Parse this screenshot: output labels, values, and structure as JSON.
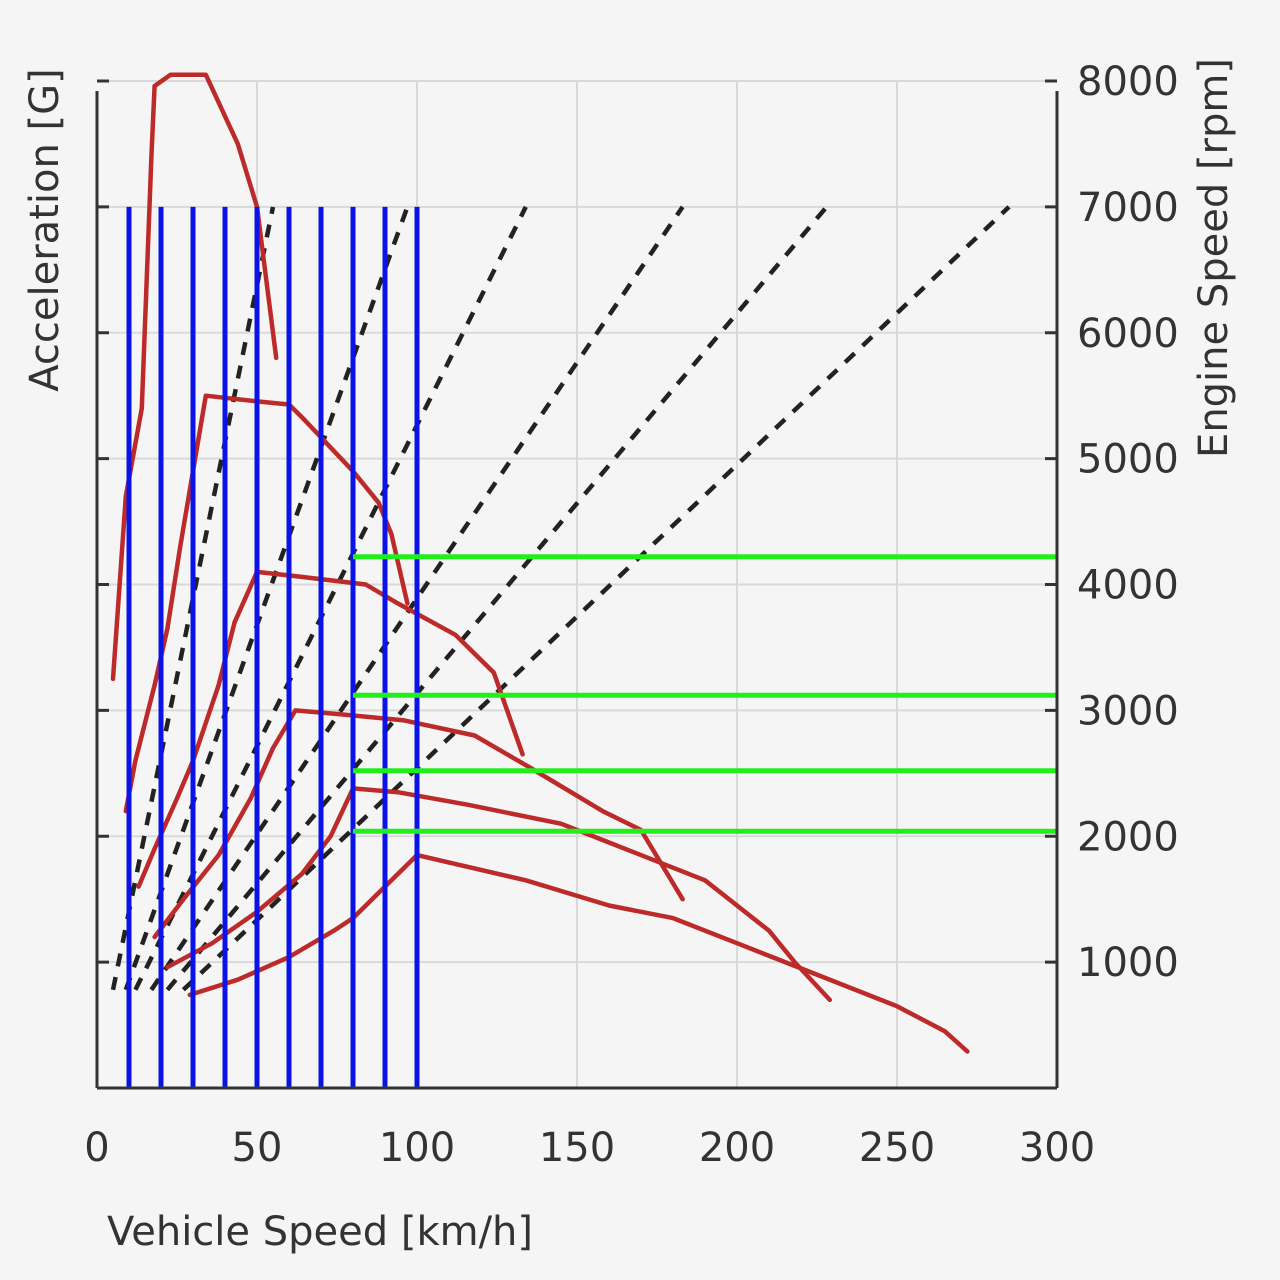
{
  "chart_data": {
    "type": "line",
    "title": "",
    "xlabel": "Vehicle Speed [km/h]",
    "ylabel_left": "Acceleration [G]",
    "ylabel_right": "Engine Speed [rpm]",
    "xlim": [
      0,
      300
    ],
    "ylim_rpm": [
      0,
      8000
    ],
    "x_ticks": [
      "0",
      "50",
      "100",
      "150",
      "200",
      "250",
      "300"
    ],
    "y_ticks_right": [
      "1000",
      "2000",
      "3000",
      "4000",
      "5000",
      "6000",
      "7000",
      "8000"
    ],
    "grid": true,
    "colors": {
      "acceleration": "#bd2a2a",
      "rpm": "#222222",
      "vertical_markers": "#0a14e6",
      "horizontal_markers": "#22ee1c",
      "grid": "#d9d9d9",
      "axis": "#333333"
    },
    "acceleration_curves": [
      {
        "points": [
          [
            5,
            3250
          ],
          [
            9,
            4700
          ],
          [
            14,
            5400
          ],
          [
            17,
            7400
          ],
          [
            18,
            7960
          ],
          [
            23,
            8050
          ],
          [
            34,
            8050
          ],
          [
            44,
            7500
          ],
          [
            50,
            7000
          ],
          [
            53,
            6400
          ],
          [
            56,
            5800
          ]
        ]
      },
      {
        "points": [
          [
            9,
            2200
          ],
          [
            12,
            2600
          ],
          [
            18,
            3200
          ],
          [
            22,
            3650
          ],
          [
            26,
            4300
          ],
          [
            34,
            5500
          ],
          [
            52,
            5450
          ],
          [
            60,
            5430
          ],
          [
            64,
            5330
          ],
          [
            80,
            4900
          ],
          [
            88,
            4650
          ],
          [
            92,
            4400
          ],
          [
            97,
            3850
          ]
        ]
      },
      {
        "points": [
          [
            13,
            1600
          ],
          [
            18,
            1900
          ],
          [
            25,
            2300
          ],
          [
            30,
            2600
          ],
          [
            38,
            3200
          ],
          [
            43,
            3700
          ],
          [
            50,
            4100
          ],
          [
            64,
            4060
          ],
          [
            84,
            4000
          ],
          [
            94,
            3850
          ],
          [
            112,
            3600
          ],
          [
            124,
            3300
          ],
          [
            133,
            2650
          ]
        ]
      },
      {
        "points": [
          [
            18,
            1200
          ],
          [
            27,
            1500
          ],
          [
            38,
            1850
          ],
          [
            48,
            2300
          ],
          [
            55,
            2700
          ],
          [
            62,
            3000
          ],
          [
            76,
            2970
          ],
          [
            96,
            2920
          ],
          [
            118,
            2800
          ],
          [
            135,
            2550
          ],
          [
            158,
            2200
          ],
          [
            170,
            2050
          ],
          [
            183,
            1500
          ]
        ]
      },
      {
        "points": [
          [
            22,
            960
          ],
          [
            36,
            1150
          ],
          [
            50,
            1400
          ],
          [
            64,
            1700
          ],
          [
            73,
            2000
          ],
          [
            80,
            2380
          ],
          [
            94,
            2350
          ],
          [
            116,
            2250
          ],
          [
            145,
            2100
          ],
          [
            160,
            1950
          ],
          [
            190,
            1650
          ],
          [
            210,
            1250
          ],
          [
            218,
            1000
          ],
          [
            229,
            700
          ]
        ]
      },
      {
        "points": [
          [
            29,
            740
          ],
          [
            44,
            860
          ],
          [
            60,
            1040
          ],
          [
            74,
            1250
          ],
          [
            80,
            1350
          ],
          [
            88,
            1550
          ],
          [
            100,
            1850
          ],
          [
            134,
            1650
          ],
          [
            160,
            1450
          ],
          [
            180,
            1350
          ],
          [
            200,
            1150
          ],
          [
            220,
            950
          ],
          [
            250,
            650
          ],
          [
            265,
            450
          ],
          [
            272,
            290
          ]
        ]
      }
    ],
    "rpm_lines": [
      {
        "points": [
          [
            5,
            780
          ],
          [
            55,
            7000
          ]
        ]
      },
      {
        "points": [
          [
            9,
            780
          ],
          [
            97,
            7000
          ]
        ]
      },
      {
        "points": [
          [
            12,
            780
          ],
          [
            134,
            7000
          ]
        ]
      },
      {
        "points": [
          [
            17,
            780
          ],
          [
            183,
            7000
          ]
        ]
      },
      {
        "points": [
          [
            22,
            780
          ],
          [
            228,
            7000
          ]
        ]
      },
      {
        "points": [
          [
            27,
            780
          ],
          [
            285,
            7000
          ]
        ]
      }
    ],
    "vertical_markers": {
      "x": [
        10,
        20,
        30,
        40,
        50,
        60,
        70,
        80,
        90,
        100
      ],
      "y_range": [
        0,
        7000
      ]
    },
    "horizontal_markers": [
      {
        "y": 4220,
        "x_range": [
          80,
          300
        ]
      },
      {
        "y": 3120,
        "x_range": [
          80,
          300
        ]
      },
      {
        "y": 2520,
        "x_range": [
          80,
          300
        ]
      },
      {
        "y": 2040,
        "x_range": [
          80,
          300
        ]
      }
    ]
  }
}
